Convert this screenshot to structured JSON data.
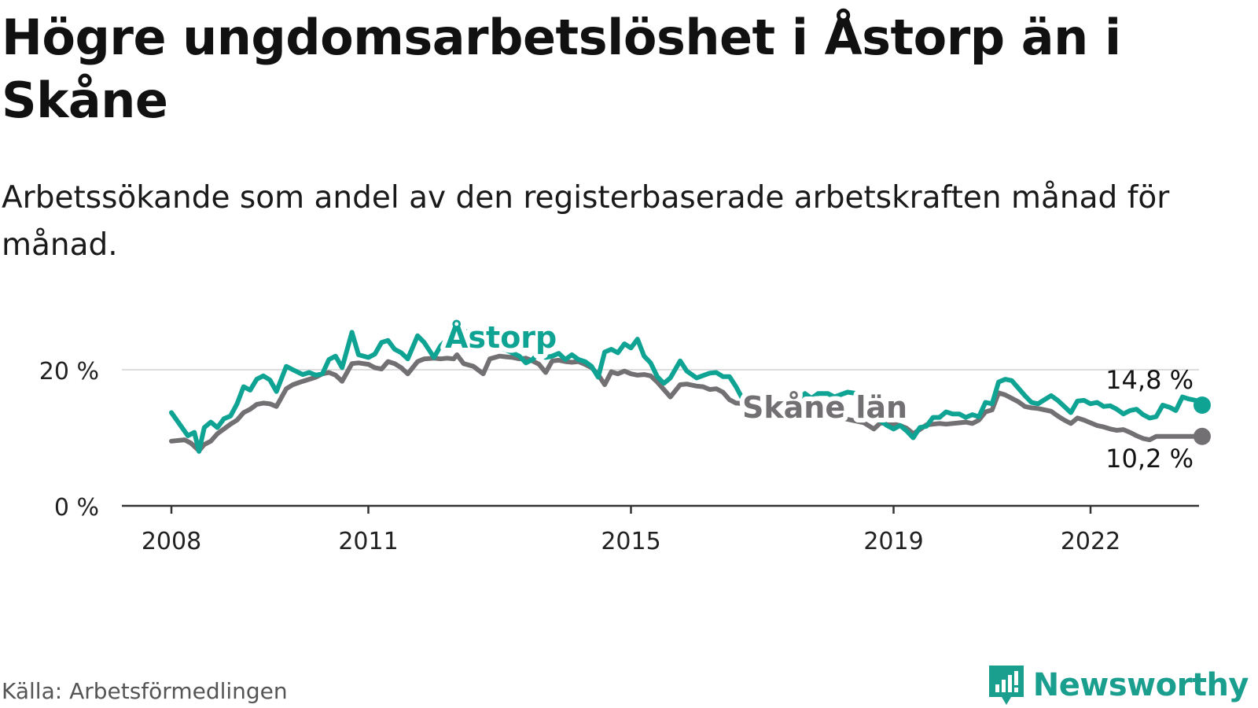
{
  "title": "Högre ungdomsarbetslöshet i Åstorp än i Skåne",
  "subtitle": "Arbetssökande som andel av den registerbaserade arbetskraften månad för månad.",
  "source": "Källa: Arbetsförmedlingen",
  "brand": "Newsworthy",
  "colors": {
    "astorp": "#0fa394",
    "skane": "#737073",
    "grid": "#dddddd",
    "axis": "#333333",
    "brand": "#1a9e8e"
  },
  "chart_data": {
    "type": "line",
    "title": "Högre ungdomsarbetslöshet i Åstorp än i Skåne",
    "xlabel": "",
    "ylabel": "",
    "xlim": [
      2008,
      2023.3
    ],
    "ylim": [
      0,
      25
    ],
    "y_ticks": [
      0,
      20
    ],
    "y_tick_labels": [
      "0 %",
      "20 %"
    ],
    "x_ticks": [
      2008,
      2011,
      2015,
      2019,
      2022
    ],
    "x_tick_labels": [
      "2008",
      "2011",
      "2015",
      "2019",
      "2022"
    ],
    "series": [
      {
        "name": "Åstorp",
        "label": "Åstorp",
        "color": "#0fa394",
        "end_label": "14,8 %",
        "points": [
          [
            2008.0,
            13.7
          ],
          [
            2008.25,
            10.3
          ],
          [
            2008.35,
            10.8
          ],
          [
            2008.42,
            8.0
          ],
          [
            2008.5,
            11.5
          ],
          [
            2008.6,
            12.3
          ],
          [
            2008.7,
            11.5
          ],
          [
            2008.8,
            12.8
          ],
          [
            2008.9,
            13.2
          ],
          [
            2009.0,
            15.0
          ],
          [
            2009.1,
            17.5
          ],
          [
            2009.2,
            17.0
          ],
          [
            2009.3,
            18.6
          ],
          [
            2009.4,
            19.1
          ],
          [
            2009.5,
            18.5
          ],
          [
            2009.6,
            16.8
          ],
          [
            2009.75,
            20.5
          ],
          [
            2009.85,
            20.0
          ],
          [
            2010.0,
            19.3
          ],
          [
            2010.1,
            19.6
          ],
          [
            2010.2,
            19.2
          ],
          [
            2010.3,
            19.4
          ],
          [
            2010.4,
            21.5
          ],
          [
            2010.5,
            22.0
          ],
          [
            2010.6,
            20.3
          ],
          [
            2010.75,
            25.5
          ],
          [
            2010.85,
            22.2
          ],
          [
            2011.0,
            21.8
          ],
          [
            2011.1,
            22.3
          ],
          [
            2011.2,
            24.0
          ],
          [
            2011.3,
            24.3
          ],
          [
            2011.4,
            23.0
          ],
          [
            2011.5,
            22.5
          ],
          [
            2011.6,
            21.6
          ],
          [
            2011.75,
            25.0
          ],
          [
            2011.85,
            24.0
          ],
          [
            2012.0,
            21.8
          ],
          [
            2012.1,
            23.5
          ],
          [
            2012.2,
            24.5
          ],
          [
            2012.3,
            25.5
          ],
          [
            2012.35,
            24.5
          ],
          [
            2012.42,
            26.0
          ],
          [
            2012.45,
            25.0
          ],
          [
            2012.5,
            25.6
          ],
          [
            2013.3,
            22.0
          ],
          [
            2013.4,
            21.0
          ],
          [
            2013.5,
            21.5
          ],
          [
            2013.6,
            22.5
          ],
          [
            2013.7,
            21.8
          ],
          [
            2013.8,
            22.0
          ],
          [
            2013.9,
            22.4
          ],
          [
            2014.0,
            21.5
          ],
          [
            2014.1,
            22.2
          ],
          [
            2014.2,
            21.5
          ],
          [
            2014.3,
            21.2
          ],
          [
            2014.4,
            20.5
          ],
          [
            2014.5,
            18.9
          ],
          [
            2014.6,
            22.6
          ],
          [
            2014.7,
            23.0
          ],
          [
            2014.8,
            22.5
          ],
          [
            2014.9,
            23.8
          ],
          [
            2015.0,
            23.2
          ],
          [
            2015.1,
            24.5
          ],
          [
            2015.2,
            22.0
          ],
          [
            2015.3,
            21.0
          ],
          [
            2015.4,
            19.0
          ],
          [
            2015.5,
            18.0
          ],
          [
            2015.6,
            18.8
          ],
          [
            2015.75,
            21.3
          ],
          [
            2015.85,
            19.8
          ],
          [
            2016.0,
            18.8
          ],
          [
            2016.2,
            19.5
          ],
          [
            2016.3,
            19.6
          ],
          [
            2016.4,
            19.0
          ],
          [
            2016.5,
            19.0
          ],
          [
            2016.6,
            17.5
          ],
          [
            2016.75,
            14.8
          ],
          [
            2016.85,
            14.5
          ],
          [
            2017.0,
            14.0
          ],
          [
            2017.1,
            13.7
          ],
          [
            2017.2,
            14.8
          ],
          [
            2017.25,
            14.0
          ],
          [
            2017.55,
            15.5
          ],
          [
            2017.65,
            16.5
          ],
          [
            2017.75,
            15.8
          ],
          [
            2017.85,
            16.5
          ],
          [
            2018.0,
            16.5
          ],
          [
            2018.1,
            16.0
          ],
          [
            2018.3,
            16.7
          ],
          [
            2018.45,
            16.5
          ],
          [
            2018.8,
            12.5
          ],
          [
            2018.9,
            11.8
          ],
          [
            2019.0,
            11.3
          ],
          [
            2019.1,
            11.8
          ],
          [
            2019.2,
            11.0
          ],
          [
            2019.3,
            10.0
          ],
          [
            2019.4,
            11.5
          ],
          [
            2019.5,
            11.7
          ],
          [
            2019.6,
            13.0
          ],
          [
            2019.7,
            13.0
          ],
          [
            2019.8,
            13.8
          ],
          [
            2019.9,
            13.5
          ],
          [
            2020.0,
            13.5
          ],
          [
            2020.1,
            13.0
          ],
          [
            2020.2,
            13.4
          ],
          [
            2020.3,
            13.1
          ],
          [
            2020.4,
            15.2
          ],
          [
            2020.5,
            15.0
          ],
          [
            2020.6,
            18.2
          ],
          [
            2020.7,
            18.6
          ],
          [
            2020.8,
            18.4
          ],
          [
            2020.9,
            17.3
          ],
          [
            2021.0,
            16.2
          ],
          [
            2021.1,
            15.2
          ],
          [
            2021.2,
            15.0
          ],
          [
            2021.3,
            15.6
          ],
          [
            2021.4,
            16.2
          ],
          [
            2021.5,
            15.5
          ],
          [
            2021.6,
            14.6
          ],
          [
            2021.7,
            13.7
          ],
          [
            2021.8,
            15.4
          ],
          [
            2021.9,
            15.5
          ],
          [
            2022.0,
            15.0
          ],
          [
            2022.1,
            15.2
          ],
          [
            2022.2,
            14.6
          ],
          [
            2022.3,
            14.7
          ],
          [
            2022.4,
            14.2
          ],
          [
            2022.5,
            13.5
          ],
          [
            2022.6,
            14.0
          ],
          [
            2022.7,
            14.2
          ],
          [
            2022.8,
            13.4
          ],
          [
            2022.9,
            12.9
          ],
          [
            2023.0,
            13.1
          ],
          [
            2023.1,
            14.8
          ],
          [
            2023.2,
            14.5
          ],
          [
            2023.3,
            14.0
          ],
          [
            2023.4,
            16.0
          ],
          [
            2023.5,
            15.7
          ],
          [
            2023.6,
            15.5
          ],
          [
            2023.7,
            14.8
          ]
        ]
      },
      {
        "name": "Skåne län",
        "label": "Skåne län",
        "color": "#737073",
        "end_label": "10,2 %",
        "points": [
          [
            2008.0,
            9.5
          ],
          [
            2008.2,
            9.7
          ],
          [
            2008.3,
            9.2
          ],
          [
            2008.42,
            8.1
          ],
          [
            2008.5,
            9.0
          ],
          [
            2008.6,
            9.5
          ],
          [
            2008.7,
            10.6
          ],
          [
            2008.8,
            11.3
          ],
          [
            2008.9,
            12.0
          ],
          [
            2009.0,
            12.6
          ],
          [
            2009.1,
            13.7
          ],
          [
            2009.2,
            14.2
          ],
          [
            2009.3,
            14.9
          ],
          [
            2009.4,
            15.1
          ],
          [
            2009.5,
            15.0
          ],
          [
            2009.6,
            14.6
          ],
          [
            2009.75,
            17.2
          ],
          [
            2009.85,
            17.8
          ],
          [
            2010.0,
            18.3
          ],
          [
            2010.1,
            18.6
          ],
          [
            2010.2,
            18.9
          ],
          [
            2010.3,
            19.4
          ],
          [
            2010.4,
            19.6
          ],
          [
            2010.5,
            19.2
          ],
          [
            2010.6,
            18.3
          ],
          [
            2010.75,
            20.9
          ],
          [
            2010.85,
            21.0
          ],
          [
            2011.0,
            20.8
          ],
          [
            2011.1,
            20.3
          ],
          [
            2011.2,
            20.1
          ],
          [
            2011.3,
            21.2
          ],
          [
            2011.4,
            20.9
          ],
          [
            2011.5,
            20.3
          ],
          [
            2011.6,
            19.4
          ],
          [
            2011.75,
            21.2
          ],
          [
            2011.85,
            21.6
          ],
          [
            2012.0,
            21.7
          ],
          [
            2012.1,
            21.6
          ],
          [
            2012.2,
            21.7
          ],
          [
            2012.3,
            21.6
          ],
          [
            2012.35,
            22.2
          ],
          [
            2012.45,
            20.9
          ],
          [
            2012.6,
            20.5
          ],
          [
            2012.75,
            19.4
          ],
          [
            2012.85,
            21.6
          ],
          [
            2013.0,
            22.0
          ],
          [
            2013.1,
            21.9
          ],
          [
            2013.2,
            21.8
          ],
          [
            2013.3,
            21.6
          ],
          [
            2013.4,
            21.7
          ],
          [
            2013.5,
            21.3
          ],
          [
            2013.6,
            20.8
          ],
          [
            2013.7,
            19.6
          ],
          [
            2013.8,
            21.3
          ],
          [
            2013.9,
            21.4
          ],
          [
            2014.0,
            21.2
          ],
          [
            2014.1,
            21.1
          ],
          [
            2014.2,
            21.2
          ],
          [
            2014.3,
            20.8
          ],
          [
            2014.4,
            20.3
          ],
          [
            2014.5,
            19.3
          ],
          [
            2014.6,
            17.8
          ],
          [
            2014.7,
            19.7
          ],
          [
            2014.8,
            19.4
          ],
          [
            2014.9,
            19.8
          ],
          [
            2015.0,
            19.4
          ],
          [
            2015.1,
            19.2
          ],
          [
            2015.2,
            19.3
          ],
          [
            2015.3,
            19.1
          ],
          [
            2015.4,
            18.2
          ],
          [
            2015.5,
            17.1
          ],
          [
            2015.6,
            16.0
          ],
          [
            2015.75,
            17.8
          ],
          [
            2015.85,
            17.9
          ],
          [
            2016.0,
            17.6
          ],
          [
            2016.1,
            17.5
          ],
          [
            2016.2,
            17.1
          ],
          [
            2016.3,
            17.2
          ],
          [
            2016.4,
            16.7
          ],
          [
            2016.5,
            15.6
          ],
          [
            2016.6,
            15.1
          ],
          [
            2016.75,
            15.0
          ],
          [
            2016.85,
            15.1
          ],
          [
            2017.0,
            14.8
          ],
          [
            2017.2,
            15.0
          ],
          [
            2018.55,
            12.2
          ],
          [
            2018.7,
            11.3
          ],
          [
            2018.8,
            12.2
          ],
          [
            2019.0,
            12.0
          ],
          [
            2019.1,
            11.8
          ],
          [
            2019.2,
            11.4
          ],
          [
            2019.3,
            10.6
          ],
          [
            2019.4,
            11.2
          ],
          [
            2019.5,
            11.9
          ],
          [
            2019.6,
            12.0
          ],
          [
            2019.7,
            12.1
          ],
          [
            2019.8,
            12.0
          ],
          [
            2019.9,
            12.1
          ],
          [
            2020.0,
            12.2
          ],
          [
            2020.1,
            12.3
          ],
          [
            2020.2,
            12.1
          ],
          [
            2020.3,
            12.6
          ],
          [
            2020.4,
            13.8
          ],
          [
            2020.5,
            14.1
          ],
          [
            2020.6,
            16.6
          ],
          [
            2020.7,
            16.3
          ],
          [
            2020.8,
            15.8
          ],
          [
            2020.9,
            15.3
          ],
          [
            2021.0,
            14.6
          ],
          [
            2021.1,
            14.4
          ],
          [
            2021.2,
            14.3
          ],
          [
            2021.3,
            14.1
          ],
          [
            2021.4,
            13.9
          ],
          [
            2021.5,
            13.2
          ],
          [
            2021.6,
            12.6
          ],
          [
            2021.7,
            12.1
          ],
          [
            2021.8,
            12.9
          ],
          [
            2021.9,
            12.6
          ],
          [
            2022.0,
            12.2
          ],
          [
            2022.1,
            11.8
          ],
          [
            2022.2,
            11.6
          ],
          [
            2022.3,
            11.3
          ],
          [
            2022.4,
            11.1
          ],
          [
            2022.5,
            11.2
          ],
          [
            2022.6,
            10.8
          ],
          [
            2022.7,
            10.3
          ],
          [
            2022.8,
            9.9
          ],
          [
            2022.9,
            9.7
          ],
          [
            2023.0,
            10.2
          ],
          [
            2023.1,
            10.2
          ],
          [
            2023.2,
            10.2
          ],
          [
            2023.3,
            10.2
          ],
          [
            2023.4,
            10.2
          ],
          [
            2023.5,
            10.2
          ],
          [
            2023.6,
            10.2
          ],
          [
            2023.7,
            10.2
          ]
        ]
      }
    ],
    "annotations": [
      "Åstorp",
      "Skåne län",
      "14,8 %",
      "10,2 %"
    ]
  }
}
